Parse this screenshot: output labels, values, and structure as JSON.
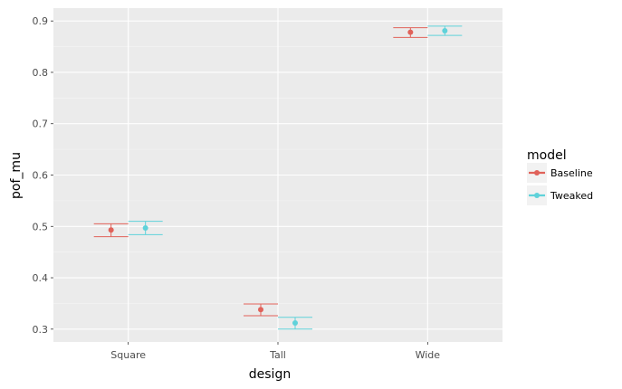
{
  "chart_data": {
    "type": "scatter",
    "title": "",
    "xlabel": "design",
    "ylabel": "pof_mu",
    "categories": [
      "Square",
      "Tall",
      "Wide"
    ],
    "ylim": [
      0.275,
      0.925
    ],
    "yticks": [
      "0.3",
      "0.4",
      "0.5",
      "0.6",
      "0.7",
      "0.8",
      "0.9"
    ],
    "grid": true,
    "legend": {
      "title": "model",
      "position": "right"
    },
    "series": [
      {
        "name": "Baseline",
        "color": "#e0625a",
        "values": [
          0.493,
          0.338,
          0.878
        ],
        "lower": [
          0.48,
          0.326,
          0.868
        ],
        "upper": [
          0.505,
          0.349,
          0.887
        ]
      },
      {
        "name": "Tweaked",
        "color": "#5fd2da",
        "values": [
          0.497,
          0.312,
          0.881
        ],
        "lower": [
          0.484,
          0.3,
          0.872
        ],
        "upper": [
          0.51,
          0.323,
          0.89
        ]
      }
    ]
  }
}
